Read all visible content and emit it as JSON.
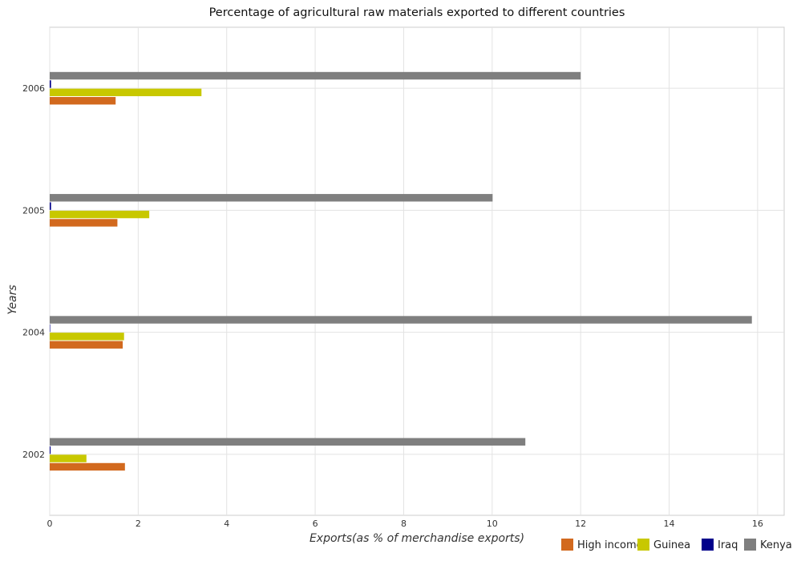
{
  "chart_data": {
    "type": "bar",
    "orientation": "horizontal",
    "title": "Percentage of agricultural raw materials exported to different countries",
    "xlabel": "Exports(as % of merchandise exports)",
    "ylabel": "Years",
    "categories": [
      "2002",
      "2004",
      "2005",
      "2006"
    ],
    "xlim": [
      0,
      16.6
    ],
    "xticks": [
      0,
      2,
      4,
      6,
      8,
      10,
      12,
      14,
      16
    ],
    "grid": true,
    "legend_position": "bottom-right",
    "series": [
      {
        "name": "High income",
        "color": "#d2691e",
        "values": [
          1.7,
          1.65,
          1.53,
          1.49
        ]
      },
      {
        "name": "Guinea",
        "color": "#c8c800",
        "values": [
          0.83,
          1.68,
          2.25,
          3.43
        ]
      },
      {
        "name": "Iraq",
        "color": "#00008b",
        "values": [
          0.02,
          0.01,
          0.03,
          0.03
        ]
      },
      {
        "name": "Kenya",
        "color": "#7f7f7f",
        "values": [
          10.75,
          15.87,
          10.01,
          12.0
        ]
      }
    ]
  }
}
